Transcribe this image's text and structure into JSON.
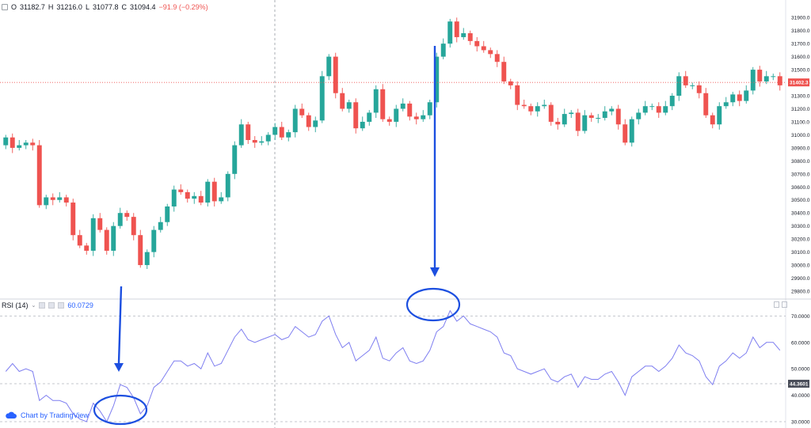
{
  "header": {
    "open_label": "O",
    "open": "31182.7",
    "high_label": "H",
    "high": "31216.0",
    "low_label": "L",
    "low": "31077.8",
    "close_label": "C",
    "close": "31094.4",
    "change": "−91.9 (−0.29%)"
  },
  "rsi_legend": {
    "name": "RSI (14)",
    "value": "60.0729"
  },
  "credit": {
    "text": "Chart by TradingView"
  },
  "colors": {
    "up": "#26a69a",
    "down": "#ef5350",
    "rsi_line": "#7e7ef0",
    "arrow": "#1c4fe0",
    "price_line": "#ef5350",
    "grid_dash": "#b2b5be"
  },
  "chart_data": [
    {
      "type": "candlestick",
      "ylim": [
        29800,
        31950
      ],
      "y_ticks": [
        29800,
        29900,
        30000,
        30100,
        30200,
        30300,
        30400,
        30500,
        30600,
        30700,
        30800,
        30900,
        31000,
        31100,
        31200,
        31300,
        31400,
        31500,
        31600,
        31700,
        31800,
        31900
      ],
      "y_tick_labels": [
        "29800.0",
        "29900.0",
        "30000.0",
        "30100.0",
        "30200.0",
        "30300.0",
        "30400.0",
        "30500.0",
        "30600.0",
        "30700.0",
        "30800.0",
        "30900.0",
        "31000.0",
        "31100.0",
        "31200.0",
        "31300.0",
        "31400.0",
        "31500.0",
        "31600.0",
        "31700.0",
        "31800.0",
        "31900.0"
      ],
      "current_price": 31402.3,
      "current_price_label": "31402.3",
      "close": [
        30980,
        30900,
        30920,
        30940,
        30920,
        30460,
        30520,
        30500,
        30520,
        30480,
        30230,
        30150,
        30110,
        30360,
        30270,
        30110,
        30300,
        30400,
        30370,
        30230,
        30000,
        30100,
        30270,
        30330,
        30450,
        30580,
        30560,
        30510,
        30530,
        30480,
        30640,
        30490,
        30520,
        30700,
        30920,
        31080,
        30960,
        30940,
        30950,
        31000,
        31060,
        30980,
        31020,
        31200,
        31150,
        31060,
        31110,
        31450,
        31600,
        31320,
        31200,
        31250,
        31050,
        31100,
        31170,
        31350,
        31120,
        31100,
        31200,
        31240,
        31140,
        31120,
        31150,
        31250,
        31600,
        31700,
        31870,
        31750,
        31780,
        31720,
        31680,
        31650,
        31620,
        31560,
        31410,
        31380,
        31230,
        31220,
        31180,
        31220,
        31230,
        31100,
        31080,
        31160,
        31170,
        31030,
        31150,
        31130,
        31130,
        31180,
        31200,
        31080,
        30940,
        31120,
        31170,
        31220,
        31220,
        31170,
        31220,
        31300,
        31450,
        31380,
        31380,
        31320,
        31150,
        31080,
        31220,
        31250,
        31310,
        31260,
        31340,
        31500,
        31410,
        31450,
        31450,
        31380
      ],
      "rsi_ylim": [
        30,
        74
      ],
      "rsi_ticks": [
        30,
        40,
        50,
        60,
        70
      ],
      "rsi_tick_labels": [
        "30.0000",
        "40.0000",
        "50.0000",
        "60.0000",
        "70.0000"
      ],
      "rsi_level_marker": 44.3601,
      "rsi_level_marker_label": "44.3601",
      "rsi_guides": [
        30,
        44.3601,
        70
      ],
      "rsi": [
        49,
        52,
        49,
        50,
        49,
        38,
        40,
        38,
        38,
        37,
        33,
        31,
        30,
        37,
        34,
        30,
        36,
        44,
        43,
        39,
        33,
        36,
        43,
        45,
        49,
        53,
        53,
        51,
        52,
        50,
        56,
        51,
        52,
        57,
        62,
        65,
        61,
        60,
        61,
        62,
        63,
        61,
        62,
        66,
        64,
        62,
        63,
        68,
        70,
        63,
        58,
        60,
        53,
        55,
        57,
        62,
        54,
        53,
        56,
        58,
        53,
        52,
        53,
        57,
        64,
        66,
        72,
        68,
        70,
        67,
        66,
        65,
        64,
        62,
        56,
        55,
        50,
        49,
        48,
        49,
        50,
        46,
        45,
        47,
        48,
        43,
        47,
        46,
        46,
        48,
        49,
        45,
        40,
        47,
        49,
        51,
        51,
        49,
        51,
        54,
        59,
        56,
        55,
        53,
        47,
        44,
        51,
        53,
        56,
        54,
        56,
        62,
        58,
        60,
        60,
        57
      ]
    }
  ]
}
